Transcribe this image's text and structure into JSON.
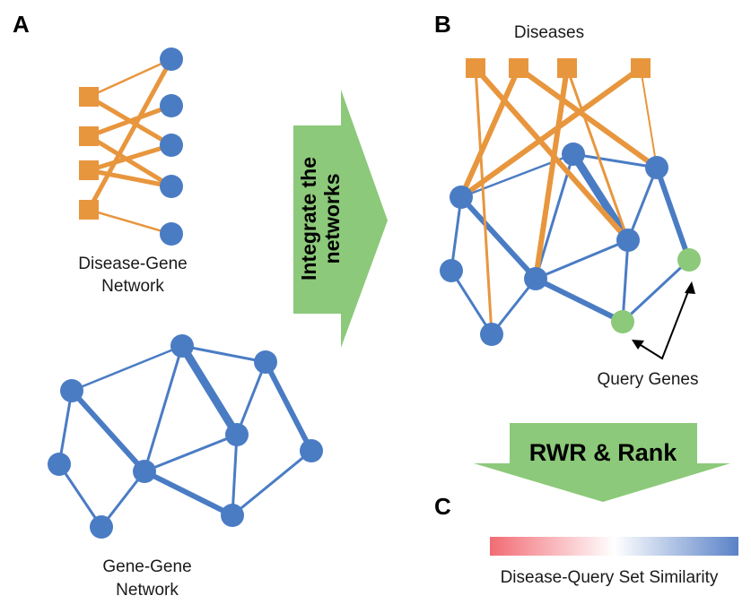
{
  "panels": {
    "a": {
      "letter": "A"
    },
    "b": {
      "letter": "B"
    },
    "c": {
      "letter": "C"
    }
  },
  "labels": {
    "disease_gene_line1": "Disease-Gene",
    "disease_gene_line2": "Network",
    "gene_gene_line1": "Gene-Gene",
    "gene_gene_line2": "Network",
    "diseases": "Diseases",
    "query_genes": "Query Genes",
    "similarity": "Disease-Query Set Similarity"
  },
  "arrows": {
    "integrate_line1": "Integrate the",
    "integrate_line2": "networks",
    "rwr": "RWR & Rank"
  },
  "colors": {
    "disease": "#E8963E",
    "gene": "#4A7CC4",
    "query": "#8CC97A",
    "arrow_fill": "#8CC97A",
    "scale_low": "#F26B74",
    "scale_mid": "#FFFFFF",
    "scale_high": "#5A82C8"
  }
}
